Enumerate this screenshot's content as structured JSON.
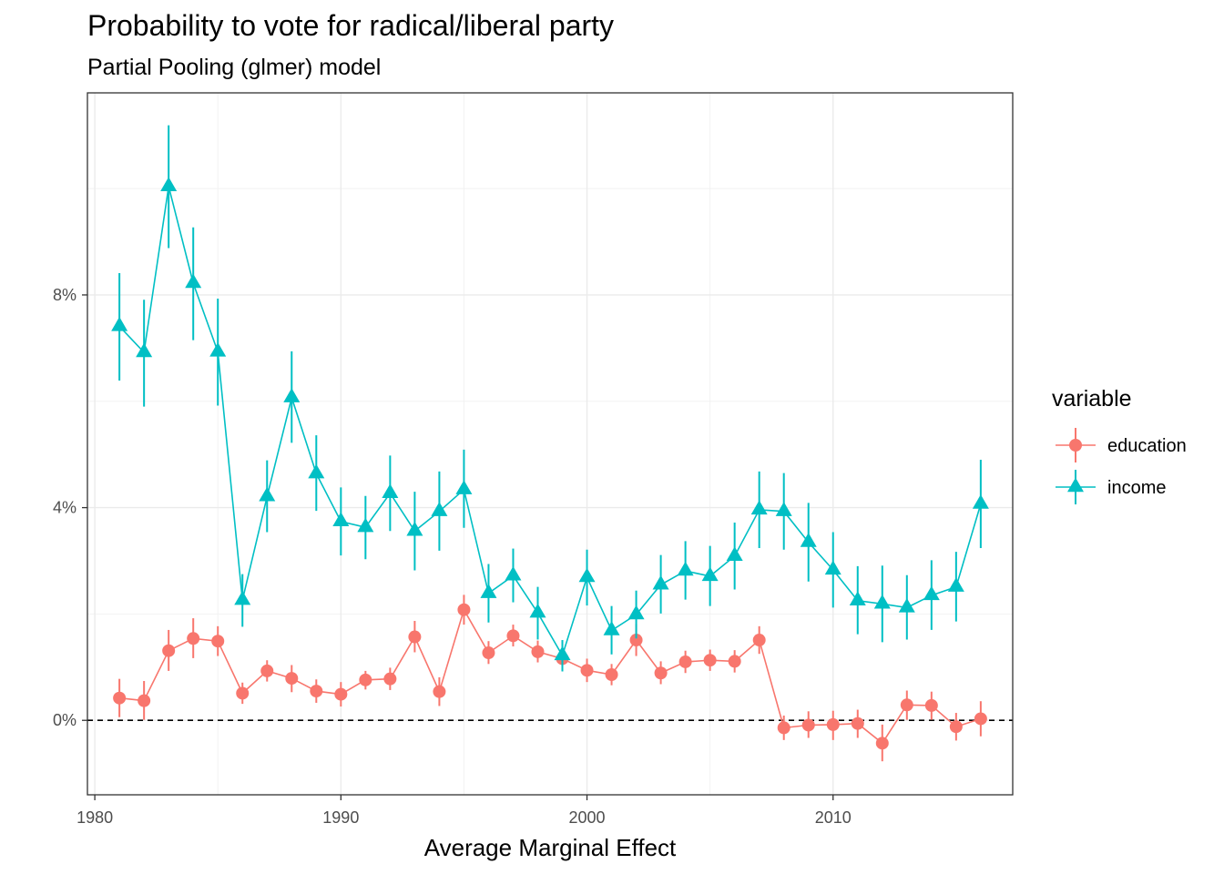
{
  "chart_data": {
    "type": "line",
    "title": "Probability to vote for radical/liberal party",
    "subtitle": "Partial Pooling (glmer) model",
    "xlabel": "Average Marginal Effect",
    "ylabel": "",
    "xlim": [
      1979.7,
      2017.3
    ],
    "ylim": [
      -1.4,
      11.8
    ],
    "x_ticks": [
      1980,
      1990,
      2000,
      2010
    ],
    "y_ticks": [
      0,
      4,
      8
    ],
    "y_tick_labels": [
      "0%",
      "4%",
      "8%"
    ],
    "y_minor_ticks": [
      2,
      6,
      10
    ],
    "reference_line_y": 0,
    "grid": true,
    "legend_title": "variable",
    "legend_position": "right",
    "x": [
      1981,
      1982,
      1983,
      1984,
      1985,
      1986,
      1987,
      1988,
      1989,
      1990,
      1991,
      1992,
      1993,
      1994,
      1995,
      1996,
      1997,
      1998,
      1999,
      2000,
      2001,
      2002,
      2003,
      2004,
      2005,
      2006,
      2007,
      2008,
      2009,
      2010,
      2011,
      2012,
      2013,
      2014,
      2015,
      2016
    ],
    "series": [
      {
        "name": "education",
        "color": "#F8766D",
        "marker": "circle",
        "values": [
          0.42,
          0.37,
          1.31,
          1.54,
          1.49,
          0.51,
          0.93,
          0.79,
          0.55,
          0.49,
          0.76,
          0.78,
          1.57,
          0.54,
          2.08,
          1.27,
          1.59,
          1.29,
          1.16,
          0.94,
          0.86,
          1.51,
          0.89,
          1.1,
          1.13,
          1.11,
          1.51,
          -0.14,
          -0.09,
          -0.08,
          -0.06,
          -0.43,
          0.29,
          0.28,
          -0.12,
          0.03
        ],
        "lower": [
          0.06,
          0.01,
          0.93,
          1.17,
          1.21,
          0.31,
          0.73,
          0.53,
          0.33,
          0.26,
          0.58,
          0.57,
          1.28,
          0.27,
          1.8,
          1.06,
          1.39,
          1.09,
          0.94,
          0.72,
          0.66,
          1.21,
          0.68,
          0.89,
          0.93,
          0.9,
          1.25,
          -0.37,
          -0.33,
          -0.37,
          -0.33,
          -0.77,
          0.01,
          0.01,
          -0.38,
          -0.3
        ],
        "upper": [
          0.78,
          0.74,
          1.7,
          1.92,
          1.77,
          0.71,
          1.13,
          1.04,
          0.77,
          0.72,
          0.93,
          0.99,
          1.87,
          0.81,
          2.36,
          1.49,
          1.8,
          1.5,
          1.37,
          1.16,
          1.06,
          1.81,
          1.11,
          1.31,
          1.33,
          1.32,
          1.77,
          0.09,
          0.17,
          0.18,
          0.2,
          -0.08,
          0.56,
          0.54,
          0.14,
          0.36
        ]
      },
      {
        "name": "income",
        "color": "#00BFC4",
        "marker": "triangle",
        "values": [
          7.41,
          6.92,
          10.04,
          8.22,
          6.93,
          2.26,
          4.21,
          6.07,
          4.64,
          3.74,
          3.63,
          4.27,
          3.56,
          3.93,
          4.34,
          2.39,
          2.72,
          2.02,
          1.22,
          2.69,
          1.69,
          1.99,
          2.55,
          2.81,
          2.71,
          3.09,
          3.96,
          3.93,
          3.35,
          2.83,
          2.25,
          2.19,
          2.12,
          2.35,
          2.51,
          4.07
        ],
        "lower": [
          6.39,
          5.9,
          8.88,
          7.15,
          5.92,
          1.76,
          3.54,
          5.22,
          3.94,
          3.1,
          3.03,
          3.56,
          2.82,
          3.19,
          3.62,
          1.84,
          2.22,
          1.52,
          0.92,
          2.16,
          1.24,
          1.54,
          2.01,
          2.27,
          2.15,
          2.46,
          3.24,
          3.21,
          2.61,
          2.12,
          1.62,
          1.47,
          1.52,
          1.7,
          1.86,
          3.24
        ],
        "upper": [
          8.41,
          7.91,
          11.19,
          9.27,
          7.93,
          2.75,
          4.89,
          6.94,
          5.36,
          4.38,
          4.22,
          4.98,
          4.3,
          4.68,
          5.09,
          2.94,
          3.23,
          2.51,
          1.51,
          3.21,
          2.15,
          2.44,
          3.11,
          3.37,
          3.28,
          3.72,
          4.68,
          4.65,
          4.09,
          3.54,
          2.9,
          2.91,
          2.73,
          3.01,
          3.17,
          4.9
        ]
      }
    ]
  }
}
